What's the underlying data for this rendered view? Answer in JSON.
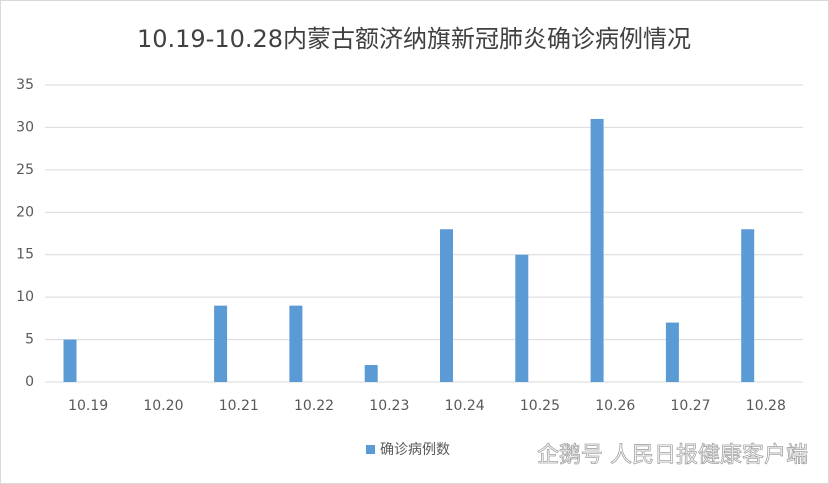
{
  "chart_data": {
    "type": "bar",
    "title": "10.19-10.28内蒙古额济纳旗新冠肺炎确诊病例情况",
    "categories": [
      "10.19",
      "10.20",
      "10.21",
      "10.22",
      "10.23",
      "10.24",
      "10.25",
      "10.26",
      "10.27",
      "10.28"
    ],
    "series": [
      {
        "name": "确诊病例数",
        "color": "#5b9bd5",
        "values": [
          5,
          0,
          9,
          9,
          2,
          18,
          15,
          31,
          7,
          18
        ]
      }
    ],
    "ylim": [
      0,
      35
    ],
    "yticks": [
      0,
      5,
      10,
      15,
      20,
      25,
      30,
      35
    ],
    "grid": true,
    "legend": "bottom",
    "watermark": "企鹅号 人民日报健康客户端"
  }
}
